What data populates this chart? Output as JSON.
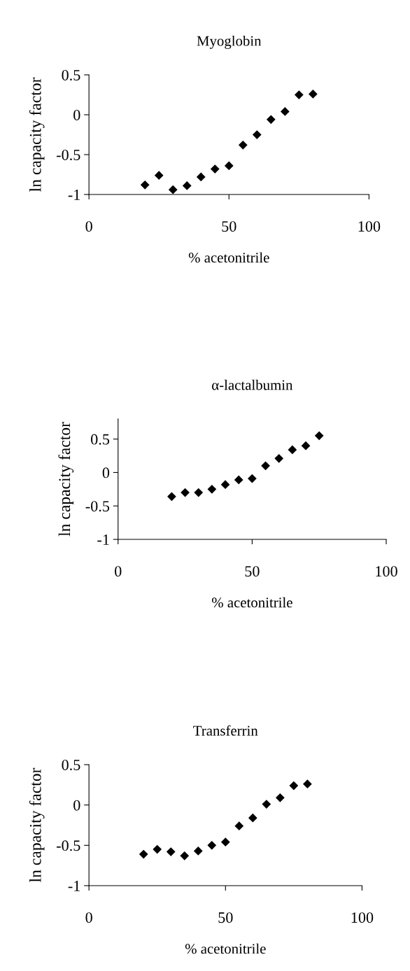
{
  "chart_data": [
    {
      "type": "scatter",
      "title": "Myoglobin",
      "xlabel": "% acetonitrile",
      "ylabel": "ln capacity factor",
      "marker": "diamond",
      "grid": false,
      "x": [
        20,
        25,
        30,
        35,
        40,
        45,
        50,
        55,
        60,
        65,
        70,
        75,
        80
      ],
      "series": [
        {
          "color": "#000000",
          "values": [
            -0.88,
            -0.76,
            -0.94,
            -0.89,
            -0.78,
            -0.68,
            -0.64,
            -0.38,
            -0.25,
            -0.06,
            0.04,
            0.25,
            0.26
          ]
        }
      ],
      "xlim": [
        0,
        100
      ],
      "xticks": [
        0,
        50,
        100
      ],
      "ylim": [
        -1,
        0.5
      ],
      "yticks": [
        -1,
        -0.5,
        0,
        0.5
      ]
    },
    {
      "type": "scatter",
      "title": "α-lactalbumin",
      "xlabel": "% acetonitrile",
      "ylabel": "ln capacity factor",
      "marker": "diamond",
      "grid": false,
      "x": [
        20,
        25,
        30,
        35,
        40,
        45,
        50,
        55,
        60,
        65,
        70,
        75
      ],
      "series": [
        {
          "color": "#000000",
          "values": [
            -0.36,
            -0.3,
            -0.3,
            -0.25,
            -0.18,
            -0.11,
            -0.09,
            0.1,
            0.21,
            0.34,
            0.4,
            0.55
          ]
        }
      ],
      "xlim": [
        0,
        100
      ],
      "xticks": [
        0,
        50,
        100
      ],
      "ylim": [
        -1,
        0.8
      ],
      "yticks": [
        -1,
        -0.5,
        0,
        0.5
      ]
    },
    {
      "type": "scatter",
      "title": "Transferrin",
      "xlabel": "% acetonitrile",
      "ylabel": "ln capacity factor",
      "marker": "diamond",
      "grid": false,
      "x": [
        20,
        25,
        30,
        35,
        40,
        45,
        50,
        55,
        60,
        65,
        70,
        75,
        80
      ],
      "series": [
        {
          "color": "#000000",
          "values": [
            -0.61,
            -0.55,
            -0.58,
            -0.63,
            -0.57,
            -0.5,
            -0.46,
            -0.26,
            -0.16,
            0.01,
            0.09,
            0.24,
            0.26
          ]
        }
      ],
      "xlim": [
        0,
        100
      ],
      "xticks": [
        0,
        50,
        100
      ],
      "ylim": [
        -1,
        0.5
      ],
      "yticks": [
        -1,
        -0.5,
        0,
        0.5
      ]
    }
  ]
}
